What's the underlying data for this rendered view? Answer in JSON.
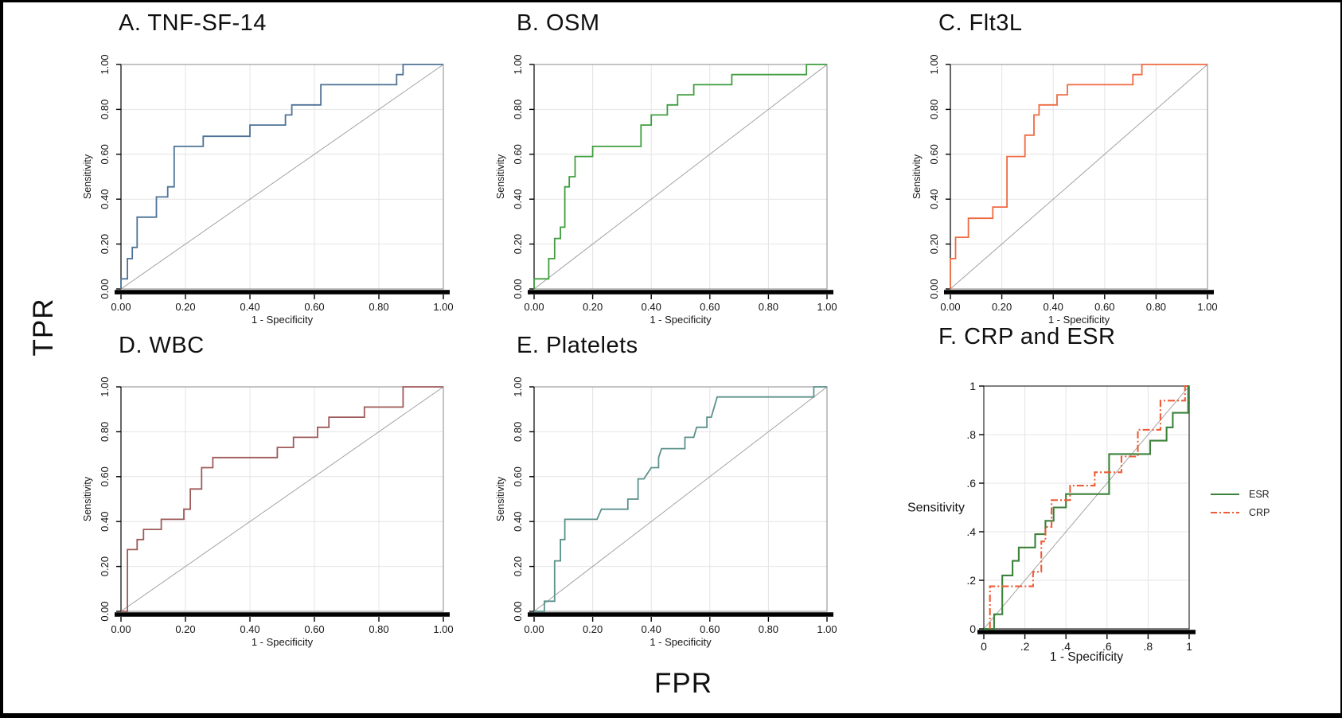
{
  "global": {
    "left_axis_label": "TPR",
    "bottom_axis_label": "FPR",
    "background_color": "#ffffff",
    "grid_color": "#e4e4e4",
    "diagonal_color": "#9b9b9b"
  },
  "chart_data": [
    {
      "id": "A",
      "type": "line",
      "title": "A. TNF-SF-14",
      "xlabel": "1 - Specificity",
      "ylabel": "Sensitivity",
      "xlim": [
        0,
        1
      ],
      "ylim": [
        0,
        1
      ],
      "grid": true,
      "diagonal_reference": true,
      "tick_values": [
        0,
        0.2,
        0.4,
        0.6,
        0.8,
        1
      ],
      "x_tick_labels": [
        "0.00",
        "0.20",
        "0.40",
        "0.60",
        "0.80",
        "1.00"
      ],
      "y_tick_labels": [
        "0.00",
        "0.20",
        "0.40",
        "0.60",
        "0.80",
        "1.00"
      ],
      "series": [
        {
          "name": "TNF-SF-14",
          "color": "#4e7396",
          "line_style": "solid",
          "points": [
            [
              0,
              0
            ],
            [
              0,
              0.045
            ],
            [
              0.02,
              0.045
            ],
            [
              0.02,
              0.135
            ],
            [
              0.035,
              0.135
            ],
            [
              0.035,
              0.185
            ],
            [
              0.05,
              0.185
            ],
            [
              0.05,
              0.32
            ],
            [
              0.11,
              0.32
            ],
            [
              0.11,
              0.41
            ],
            [
              0.145,
              0.41
            ],
            [
              0.145,
              0.455
            ],
            [
              0.165,
              0.455
            ],
            [
              0.165,
              0.635
            ],
            [
              0.255,
              0.635
            ],
            [
              0.255,
              0.68
            ],
            [
              0.4,
              0.68
            ],
            [
              0.4,
              0.73
            ],
            [
              0.51,
              0.73
            ],
            [
              0.51,
              0.775
            ],
            [
              0.53,
              0.775
            ],
            [
              0.53,
              0.82
            ],
            [
              0.62,
              0.82
            ],
            [
              0.62,
              0.91
            ],
            [
              0.855,
              0.91
            ],
            [
              0.855,
              0.955
            ],
            [
              0.875,
              0.955
            ],
            [
              0.875,
              1
            ],
            [
              1,
              1
            ]
          ]
        }
      ]
    },
    {
      "id": "B",
      "type": "line",
      "title": "B. OSM",
      "xlabel": "1 - Specificity",
      "ylabel": "Sensitivity",
      "xlim": [
        0,
        1
      ],
      "ylim": [
        0,
        1
      ],
      "grid": true,
      "diagonal_reference": true,
      "tick_values": [
        0,
        0.2,
        0.4,
        0.6,
        0.8,
        1
      ],
      "x_tick_labels": [
        "0.00",
        "0.20",
        "0.40",
        "0.60",
        "0.80",
        "1.00"
      ],
      "y_tick_labels": [
        "0.00",
        "0.20",
        "0.40",
        "0.60",
        "0.80",
        "1.00"
      ],
      "series": [
        {
          "name": "OSM",
          "color": "#3f9e3f",
          "line_style": "solid",
          "points": [
            [
              0,
              0
            ],
            [
              0,
              0.045
            ],
            [
              0.05,
              0.045
            ],
            [
              0.05,
              0.135
            ],
            [
              0.07,
              0.135
            ],
            [
              0.07,
              0.225
            ],
            [
              0.09,
              0.225
            ],
            [
              0.09,
              0.275
            ],
            [
              0.105,
              0.275
            ],
            [
              0.105,
              0.455
            ],
            [
              0.12,
              0.455
            ],
            [
              0.12,
              0.5
            ],
            [
              0.14,
              0.5
            ],
            [
              0.14,
              0.59
            ],
            [
              0.2,
              0.59
            ],
            [
              0.2,
              0.635
            ],
            [
              0.365,
              0.635
            ],
            [
              0.365,
              0.73
            ],
            [
              0.4,
              0.73
            ],
            [
              0.4,
              0.775
            ],
            [
              0.455,
              0.775
            ],
            [
              0.455,
              0.82
            ],
            [
              0.49,
              0.82
            ],
            [
              0.49,
              0.865
            ],
            [
              0.545,
              0.865
            ],
            [
              0.545,
              0.91
            ],
            [
              0.675,
              0.91
            ],
            [
              0.675,
              0.955
            ],
            [
              0.93,
              0.955
            ],
            [
              0.93,
              1
            ],
            [
              1,
              1
            ]
          ]
        }
      ]
    },
    {
      "id": "C",
      "type": "line",
      "title": "C. Flt3L",
      "xlabel": "1 - Specificity",
      "ylabel": "Sensitivity",
      "xlim": [
        0,
        1
      ],
      "ylim": [
        0,
        1
      ],
      "grid": true,
      "diagonal_reference": true,
      "tick_values": [
        0,
        0.2,
        0.4,
        0.6,
        0.8,
        1
      ],
      "x_tick_labels": [
        "0.00",
        "0.20",
        "0.40",
        "0.60",
        "0.80",
        "1.00"
      ],
      "y_tick_labels": [
        "0.00",
        "0.20",
        "0.40",
        "0.60",
        "0.80",
        "1.00"
      ],
      "series": [
        {
          "name": "Flt3L",
          "color": "#ee6a42",
          "line_style": "solid",
          "points": [
            [
              0,
              0
            ],
            [
              0,
              0.135
            ],
            [
              0.02,
              0.135
            ],
            [
              0.02,
              0.23
            ],
            [
              0.07,
              0.23
            ],
            [
              0.07,
              0.315
            ],
            [
              0.165,
              0.315
            ],
            [
              0.165,
              0.365
            ],
            [
              0.22,
              0.365
            ],
            [
              0.22,
              0.59
            ],
            [
              0.29,
              0.59
            ],
            [
              0.29,
              0.685
            ],
            [
              0.325,
              0.685
            ],
            [
              0.325,
              0.775
            ],
            [
              0.345,
              0.775
            ],
            [
              0.345,
              0.82
            ],
            [
              0.415,
              0.82
            ],
            [
              0.415,
              0.865
            ],
            [
              0.455,
              0.865
            ],
            [
              0.455,
              0.91
            ],
            [
              0.71,
              0.91
            ],
            [
              0.71,
              0.955
            ],
            [
              0.745,
              0.955
            ],
            [
              0.745,
              1
            ],
            [
              1,
              1
            ]
          ]
        }
      ]
    },
    {
      "id": "D",
      "type": "line",
      "title": "D. WBC",
      "xlabel": "1 - Specificity",
      "ylabel": "Sensitivity",
      "xlim": [
        0,
        1
      ],
      "ylim": [
        0,
        1
      ],
      "grid": true,
      "diagonal_reference": true,
      "tick_values": [
        0,
        0.2,
        0.4,
        0.6,
        0.8,
        1
      ],
      "x_tick_labels": [
        "0.00",
        "0.20",
        "0.40",
        "0.60",
        "0.80",
        "1.00"
      ],
      "y_tick_labels": [
        "0.00",
        "0.20",
        "0.40",
        "0.60",
        "0.80",
        "1.00"
      ],
      "series": [
        {
          "name": "WBC",
          "color": "#9e5a5a",
          "line_style": "solid",
          "points": [
            [
              0,
              0
            ],
            [
              0.02,
              0
            ],
            [
              0.02,
              0.275
            ],
            [
              0.05,
              0.275
            ],
            [
              0.05,
              0.32
            ],
            [
              0.07,
              0.32
            ],
            [
              0.07,
              0.365
            ],
            [
              0.125,
              0.365
            ],
            [
              0.125,
              0.41
            ],
            [
              0.195,
              0.41
            ],
            [
              0.195,
              0.455
            ],
            [
              0.215,
              0.455
            ],
            [
              0.215,
              0.545
            ],
            [
              0.25,
              0.545
            ],
            [
              0.25,
              0.64
            ],
            [
              0.285,
              0.64
            ],
            [
              0.285,
              0.685
            ],
            [
              0.485,
              0.685
            ],
            [
              0.485,
              0.73
            ],
            [
              0.535,
              0.73
            ],
            [
              0.535,
              0.775
            ],
            [
              0.61,
              0.775
            ],
            [
              0.61,
              0.82
            ],
            [
              0.645,
              0.82
            ],
            [
              0.645,
              0.865
            ],
            [
              0.755,
              0.865
            ],
            [
              0.755,
              0.91
            ],
            [
              0.875,
              0.91
            ],
            [
              0.875,
              1
            ],
            [
              1,
              1
            ]
          ]
        }
      ]
    },
    {
      "id": "E",
      "type": "line",
      "title": "E. Platelets",
      "xlabel": "1 - Specificity",
      "ylabel": "Sensitivity",
      "xlim": [
        0,
        1
      ],
      "ylim": [
        0,
        1
      ],
      "grid": true,
      "diagonal_reference": true,
      "tick_values": [
        0,
        0.2,
        0.4,
        0.6,
        0.8,
        1
      ],
      "x_tick_labels": [
        "0.00",
        "0.20",
        "0.40",
        "0.60",
        "0.80",
        "1.00"
      ],
      "y_tick_labels": [
        "0.00",
        "0.20",
        "0.40",
        "0.60",
        "0.80",
        "1.00"
      ],
      "series": [
        {
          "name": "Platelets",
          "color": "#5c918c",
          "line_style": "solid",
          "points": [
            [
              0,
              0
            ],
            [
              0.035,
              0
            ],
            [
              0.035,
              0.045
            ],
            [
              0.07,
              0.045
            ],
            [
              0.07,
              0.225
            ],
            [
              0.09,
              0.225
            ],
            [
              0.09,
              0.32
            ],
            [
              0.105,
              0.32
            ],
            [
              0.105,
              0.41
            ],
            [
              0.215,
              0.41
            ],
            [
              0.23,
              0.455
            ],
            [
              0.32,
              0.455
            ],
            [
              0.32,
              0.5
            ],
            [
              0.355,
              0.5
            ],
            [
              0.355,
              0.59
            ],
            [
              0.375,
              0.59
            ],
            [
              0.4,
              0.64
            ],
            [
              0.425,
              0.64
            ],
            [
              0.425,
              0.685
            ],
            [
              0.435,
              0.725
            ],
            [
              0.515,
              0.725
            ],
            [
              0.515,
              0.775
            ],
            [
              0.545,
              0.775
            ],
            [
              0.555,
              0.82
            ],
            [
              0.59,
              0.82
            ],
            [
              0.59,
              0.865
            ],
            [
              0.605,
              0.865
            ],
            [
              0.625,
              0.955
            ],
            [
              0.955,
              0.955
            ],
            [
              0.955,
              1
            ],
            [
              1,
              1
            ]
          ]
        }
      ]
    },
    {
      "id": "F",
      "type": "line",
      "title": "F. CRP and ESR",
      "xlabel": "1 - Specificity",
      "ylabel": "Sensitivity",
      "xlim": [
        0,
        1
      ],
      "ylim": [
        0,
        1
      ],
      "grid": true,
      "diagonal_reference": true,
      "tick_values": [
        0,
        0.2,
        0.4,
        0.6,
        0.8,
        1
      ],
      "x_tick_labels": [
        "0",
        ".2",
        ".4",
        ".6",
        ".8",
        "1"
      ],
      "y_tick_labels": [
        "0",
        ".2",
        ".4",
        ".6",
        ".8",
        "1"
      ],
      "legend": {
        "position": "right"
      },
      "series": [
        {
          "name": "ESR",
          "color": "#3b823b",
          "line_style": "solid",
          "points": [
            [
              0,
              0
            ],
            [
              0.05,
              0
            ],
            [
              0.05,
              0.06
            ],
            [
              0.09,
              0.06
            ],
            [
              0.09,
              0.22
            ],
            [
              0.14,
              0.22
            ],
            [
              0.14,
              0.28
            ],
            [
              0.17,
              0.28
            ],
            [
              0.17,
              0.335
            ],
            [
              0.25,
              0.335
            ],
            [
              0.25,
              0.39
            ],
            [
              0.3,
              0.39
            ],
            [
              0.3,
              0.445
            ],
            [
              0.34,
              0.445
            ],
            [
              0.34,
              0.5
            ],
            [
              0.4,
              0.5
            ],
            [
              0.4,
              0.555
            ],
            [
              0.61,
              0.555
            ],
            [
              0.61,
              0.72
            ],
            [
              0.81,
              0.72
            ],
            [
              0.81,
              0.775
            ],
            [
              0.89,
              0.775
            ],
            [
              0.89,
              0.83
            ],
            [
              0.92,
              0.83
            ],
            [
              0.92,
              0.89
            ],
            [
              0.995,
              0.89
            ],
            [
              0.995,
              1
            ],
            [
              1,
              1
            ]
          ]
        },
        {
          "name": "CRP",
          "color": "#ee5c38",
          "line_style": "dashdot",
          "points": [
            [
              0.03,
              0
            ],
            [
              0.03,
              0.175
            ],
            [
              0.24,
              0.175
            ],
            [
              0.24,
              0.235
            ],
            [
              0.28,
              0.235
            ],
            [
              0.28,
              0.36
            ],
            [
              0.3,
              0.36
            ],
            [
              0.3,
              0.42
            ],
            [
              0.33,
              0.42
            ],
            [
              0.33,
              0.53
            ],
            [
              0.42,
              0.53
            ],
            [
              0.42,
              0.59
            ],
            [
              0.54,
              0.59
            ],
            [
              0.54,
              0.645
            ],
            [
              0.67,
              0.645
            ],
            [
              0.67,
              0.71
            ],
            [
              0.75,
              0.71
            ],
            [
              0.75,
              0.82
            ],
            [
              0.86,
              0.82
            ],
            [
              0.86,
              0.94
            ],
            [
              0.98,
              0.94
            ],
            [
              0.98,
              1
            ],
            [
              1,
              1
            ]
          ]
        }
      ]
    }
  ]
}
